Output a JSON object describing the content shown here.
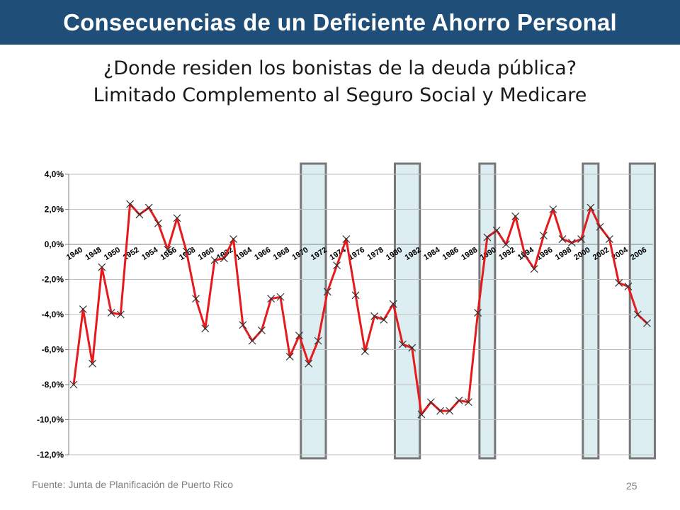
{
  "header": {
    "title": "Consecuencias de un Deficiente Ahorro Personal"
  },
  "subtitle": {
    "line1": "¿Donde residen los bonistas de la deuda pública?",
    "line2": "Limitado Complemento al Seguro Social y Medicare"
  },
  "footer": {
    "source": "Fuente: Junta de Planificación de Puerto Rico",
    "page_number": "25"
  },
  "colors": {
    "banner": "#1f4e79",
    "line": "#e41a1c",
    "marker": "#333333",
    "recession_fill": "#ddeef2",
    "recession_border": "#777777"
  },
  "chart_data": {
    "type": "line",
    "ylim": [
      -12,
      4
    ],
    "yticks": [
      4,
      2,
      0,
      -2,
      -4,
      -6,
      -8,
      -10,
      -12
    ],
    "ytick_labels": [
      "4,0%",
      "2,0%",
      "0,0%",
      "-2,0%",
      "-4,0%",
      "-6,0%",
      "-8,0%",
      "-10,0%",
      "-12,0%"
    ],
    "x_tick_labels": [
      "1940",
      "1948",
      "1950",
      "1952",
      "1954",
      "1956",
      "1958",
      "1960",
      "1962",
      "1964",
      "1966",
      "1968",
      "1970",
      "1972",
      "1974",
      "1976",
      "1978",
      "1980",
      "1982",
      "1984",
      "1986",
      "1988",
      "1990",
      "1992",
      "1994",
      "1996",
      "1998",
      "2000",
      "2002",
      "2004",
      "2006"
    ],
    "x": [
      "1940",
      "1947",
      "1948",
      "1949",
      "1950",
      "1951",
      "1952",
      "1953",
      "1954",
      "1955",
      "1956",
      "1957",
      "1958",
      "1959",
      "1960",
      "1961",
      "1962",
      "1963",
      "1964",
      "1965",
      "1966",
      "1967",
      "1968",
      "1969",
      "1970",
      "1971",
      "1972",
      "1973",
      "1974",
      "1975",
      "1976",
      "1977",
      "1978",
      "1979",
      "1980",
      "1981",
      "1982",
      "1983",
      "1984",
      "1985",
      "1986",
      "1987",
      "1988",
      "1989",
      "1990",
      "1991",
      "1992",
      "1993",
      "1994",
      "1995",
      "1996",
      "1997",
      "1998",
      "1999",
      "2000",
      "2001",
      "2002",
      "2003",
      "2004",
      "2005",
      "2006",
      "2007"
    ],
    "series": [
      {
        "values": [
          -8.0,
          -3.7,
          -6.8,
          -1.3,
          -3.9,
          -4.0,
          2.3,
          1.7,
          2.1,
          1.2,
          -0.3,
          1.5,
          -0.4,
          -3.1,
          -4.8,
          -0.9,
          -0.8,
          0.3,
          -4.6,
          -5.5,
          -4.9,
          -3.1,
          -3.0,
          -6.4,
          -5.2,
          -6.8,
          -5.5,
          -2.7,
          -1.2,
          0.3,
          -2.9,
          -6.1,
          -4.1,
          -4.3,
          -3.4,
          -5.7,
          -5.9,
          -9.7,
          -9.0,
          -9.5,
          -9.5,
          -8.9,
          -9.0,
          -3.9,
          0.4,
          0.8,
          0.0,
          1.6,
          -0.6,
          -1.4,
          0.5,
          2.0,
          0.3,
          0.1,
          0.3,
          2.1,
          1.0,
          0.3,
          -2.2,
          -2.4,
          -4.0,
          -4.5
        ]
      }
    ],
    "recession_bands": [
      {
        "start": "1971",
        "end": "1972"
      },
      {
        "start": "1981",
        "end": "1982"
      },
      {
        "start": "1990",
        "end": "1990"
      },
      {
        "start": "2001",
        "end": "2001"
      },
      {
        "start": "2006",
        "end": "2007"
      }
    ],
    "grid": "horizontal"
  }
}
